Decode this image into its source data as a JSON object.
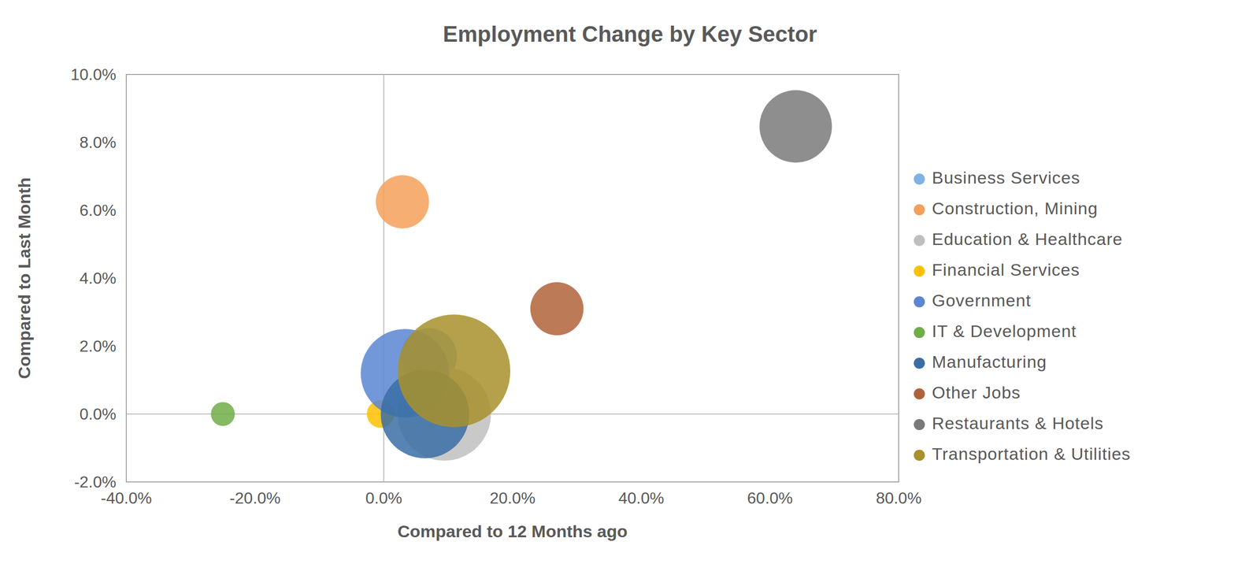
{
  "chart_data": {
    "type": "scatter",
    "title": "Employment Change by Key Sector",
    "x_label": "Compared to 12 Months ago",
    "y_label": "Compared to Last Month",
    "xlim": [
      -40,
      80
    ],
    "xticks": [
      {
        "value": -40,
        "label": "-40.0%"
      },
      {
        "value": -20,
        "label": "-20.0%"
      },
      {
        "value": 0,
        "label": "0.0%"
      },
      {
        "value": 20,
        "label": "20.0%"
      },
      {
        "value": 40,
        "label": "40.0%"
      },
      {
        "value": 60,
        "label": "60.0%"
      },
      {
        "value": 80,
        "label": "80.0%"
      }
    ],
    "ylim": [
      -2,
      10
    ],
    "yticks": [
      {
        "value": -2,
        "label": "-2.0%"
      },
      {
        "value": 0,
        "label": "0.0%"
      },
      {
        "value": 2,
        "label": "2.0%"
      },
      {
        "value": 4,
        "label": "4.0%"
      },
      {
        "value": 6,
        "label": "6.0%"
      },
      {
        "value": 8,
        "label": "8.0%"
      },
      {
        "value": 10,
        "label": "10.0%"
      }
    ],
    "grid": false,
    "legend": "right",
    "marker": "circle",
    "series": [
      {
        "name": "Business Services",
        "color": "#7fb2e5",
        "x": [
          7
        ],
        "y": [
          1.7
        ],
        "size": [
          122
        ]
      },
      {
        "name": "Construction, Mining",
        "color": "#f4a05a",
        "x": [
          2.9
        ],
        "y": [
          6.25
        ],
        "size": [
          109
        ]
      },
      {
        "name": "Education & Healthcare",
        "color": "#bfbfbf",
        "x": [
          9.4
        ],
        "y": [
          0
        ],
        "size": [
          336
        ]
      },
      {
        "name": "Financial Services",
        "color": "#ffc000",
        "x": [
          -0.5
        ],
        "y": [
          0
        ],
        "size": [
          29
        ]
      },
      {
        "name": "Government",
        "color": "#5b86d4",
        "x": [
          3.3
        ],
        "y": [
          1.2
        ],
        "size": [
          302
        ]
      },
      {
        "name": "IT & Development",
        "color": "#70ad47",
        "x": [
          -25
        ],
        "y": [
          0
        ],
        "size": [
          22
        ]
      },
      {
        "name": "Manufacturing",
        "color": "#3a6ea5",
        "x": [
          6.4
        ],
        "y": [
          0
        ],
        "size": [
          302
        ]
      },
      {
        "name": "Other Jobs",
        "color": "#b0633a",
        "x": [
          26.9
        ],
        "y": [
          3.1
        ],
        "size": [
          109
        ]
      },
      {
        "name": "Restaurants & Hotels",
        "color": "#7a7a7a",
        "x": [
          64
        ],
        "y": [
          8.47
        ],
        "size": [
          202
        ]
      },
      {
        "name": "Transportation & Utilities",
        "color": "#a8902c",
        "x": [
          10.9
        ],
        "y": [
          1.27
        ],
        "size": [
          490
        ]
      }
    ]
  }
}
